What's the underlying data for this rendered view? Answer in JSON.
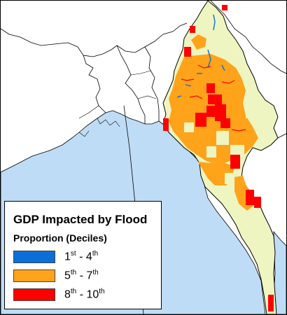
{
  "legend": {
    "title": "GDP Impacted by Flood",
    "subtitle": "Proportion (Deciles)",
    "classes": [
      {
        "from": "1",
        "from_suffix": "st",
        "sep": " - ",
        "to": "4",
        "to_suffix": "th",
        "color": "#0a6fd8"
      },
      {
        "from": "5",
        "from_suffix": "th",
        "sep": " - ",
        "to": "7",
        "to_suffix": "th",
        "color": "#ffa31a"
      },
      {
        "from": "8",
        "from_suffix": "th",
        "sep": " - ",
        "to": "10",
        "to_suffix": "th",
        "color": "#ff0000"
      }
    ]
  },
  "colors": {
    "sea": "#bedcf5",
    "land": "#ffffff",
    "country_base": "#eef5c0",
    "borders": "#000000"
  }
}
